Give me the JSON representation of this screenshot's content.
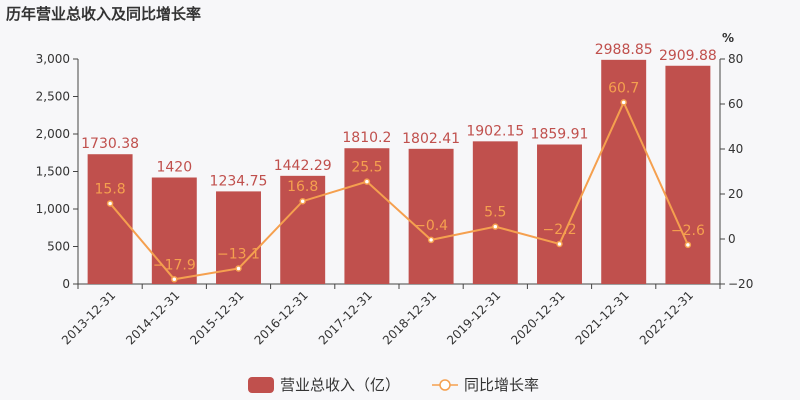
{
  "chart_data": {
    "type": "bar",
    "title": "历年营业总收入及同比增长率",
    "categories": [
      "2013-12-31",
      "2014-12-31",
      "2015-12-31",
      "2016-12-31",
      "2017-12-31",
      "2018-12-31",
      "2019-12-31",
      "2020-12-31",
      "2021-12-31",
      "2022-12-31"
    ],
    "series": [
      {
        "name": "营业总收入（亿）",
        "type": "bar",
        "axis": "left",
        "color": "#c0504d",
        "values": [
          1730.38,
          1420,
          1234.75,
          1442.29,
          1810.2,
          1802.41,
          1902.15,
          1859.91,
          2988.85,
          2909.88
        ],
        "labels": [
          "1730.38",
          "1420",
          "1234.75",
          "1442.29",
          "1810.2",
          "1802.41",
          "1902.15",
          "1859.91",
          "2988.85",
          "2909.88"
        ]
      },
      {
        "name": "同比增长率",
        "type": "line",
        "axis": "right",
        "color": "#f5a04f",
        "values": [
          15.8,
          -17.9,
          -13.1,
          16.8,
          25.5,
          -0.4,
          5.5,
          -2.2,
          60.7,
          -2.6
        ],
        "labels": [
          "15.8",
          "−17.9",
          "−13.1",
          "16.8",
          "25.5",
          "−0.4",
          "5.5",
          "−2.2",
          "60.7",
          "−2.6"
        ]
      }
    ],
    "y_left": {
      "min": 0,
      "max": 3000,
      "ticks": [
        "0",
        "500",
        "1,000",
        "1,500",
        "2,000",
        "2,500",
        "3,000"
      ]
    },
    "y_right": {
      "min": -20,
      "max": 80,
      "unit": "%",
      "ticks": [
        "−20",
        "0",
        "20",
        "40",
        "60",
        "80"
      ]
    },
    "legend": "bottom-center",
    "grid": false
  }
}
